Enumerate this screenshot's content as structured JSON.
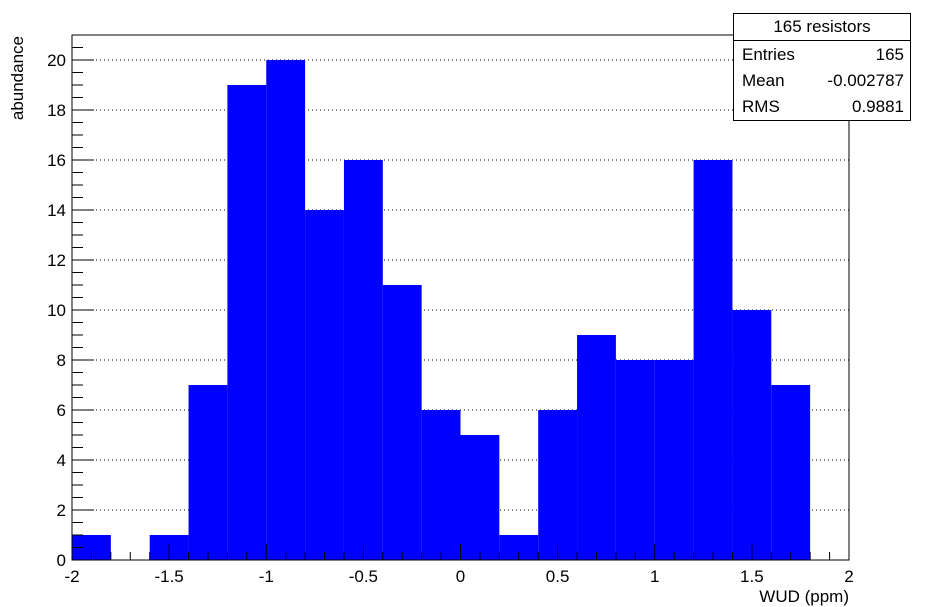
{
  "chart_data": {
    "type": "histogram",
    "title": "",
    "xlabel": "WUD (ppm)",
    "ylabel": "abundance",
    "xlim": [
      -2,
      2
    ],
    "ylim": [
      0,
      21
    ],
    "bin_width": 0.2,
    "bins": [
      {
        "x0": -2.0,
        "x1": -1.8,
        "count": 1
      },
      {
        "x0": -1.8,
        "x1": -1.6,
        "count": 0
      },
      {
        "x0": -1.6,
        "x1": -1.4,
        "count": 1
      },
      {
        "x0": -1.4,
        "x1": -1.2,
        "count": 7
      },
      {
        "x0": -1.2,
        "x1": -1.0,
        "count": 19
      },
      {
        "x0": -1.0,
        "x1": -0.8,
        "count": 20
      },
      {
        "x0": -0.8,
        "x1": -0.6,
        "count": 14
      },
      {
        "x0": -0.6,
        "x1": -0.4,
        "count": 16
      },
      {
        "x0": -0.4,
        "x1": -0.2,
        "count": 11
      },
      {
        "x0": -0.2,
        "x1": 0.0,
        "count": 6
      },
      {
        "x0": 0.0,
        "x1": 0.2,
        "count": 5
      },
      {
        "x0": 0.2,
        "x1": 0.4,
        "count": 1
      },
      {
        "x0": 0.4,
        "x1": 0.6,
        "count": 6
      },
      {
        "x0": 0.6,
        "x1": 0.8,
        "count": 9
      },
      {
        "x0": 0.8,
        "x1": 1.0,
        "count": 8
      },
      {
        "x0": 1.0,
        "x1": 1.2,
        "count": 8
      },
      {
        "x0": 1.2,
        "x1": 1.4,
        "count": 16
      },
      {
        "x0": 1.4,
        "x1": 1.6,
        "count": 10
      },
      {
        "x0": 1.6,
        "x1": 1.8,
        "count": 7
      },
      {
        "x0": 1.8,
        "x1": 2.0,
        "count": 0
      }
    ],
    "x_ticks": [
      {
        "value": -2,
        "label": "-2"
      },
      {
        "value": -1.5,
        "label": "-1.5"
      },
      {
        "value": -1,
        "label": "-1"
      },
      {
        "value": -0.5,
        "label": "-0.5"
      },
      {
        "value": 0,
        "label": "0"
      },
      {
        "value": 0.5,
        "label": "0.5"
      },
      {
        "value": 1,
        "label": "1"
      },
      {
        "value": 1.5,
        "label": "1.5"
      },
      {
        "value": 2,
        "label": "2"
      }
    ],
    "y_ticks": [
      {
        "value": 0,
        "label": "0"
      },
      {
        "value": 2,
        "label": "2"
      },
      {
        "value": 4,
        "label": "4"
      },
      {
        "value": 6,
        "label": "6"
      },
      {
        "value": 8,
        "label": "8"
      },
      {
        "value": 10,
        "label": "10"
      },
      {
        "value": 12,
        "label": "12"
      },
      {
        "value": 14,
        "label": "14"
      },
      {
        "value": 16,
        "label": "16"
      },
      {
        "value": 18,
        "label": "18"
      },
      {
        "value": 20,
        "label": "20"
      }
    ],
    "grid": "horizontal dotted",
    "fill_color": "#0000ff",
    "stats_box": {
      "title": "165 resistors",
      "rows": [
        {
          "label": "Entries",
          "value": "165"
        },
        {
          "label": "Mean",
          "value": "-0.002787"
        },
        {
          "label": "RMS",
          "value": "0.9881"
        }
      ],
      "placement": "top-right"
    }
  }
}
